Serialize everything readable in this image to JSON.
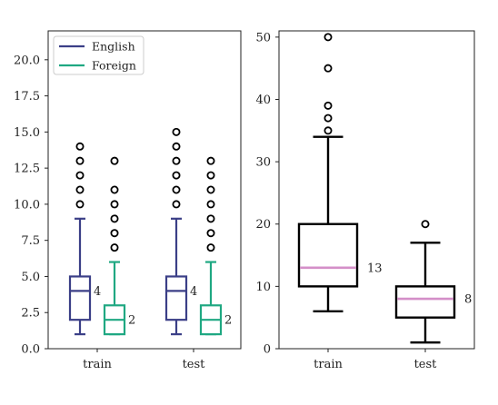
{
  "chart_data": [
    {
      "type": "box",
      "title": "",
      "xlabel": "",
      "ylabel": "",
      "categories": [
        "train",
        "test"
      ],
      "ylim": [
        0,
        22
      ],
      "yticks": [
        0.0,
        2.5,
        5.0,
        7.5,
        10.0,
        12.5,
        15.0,
        17.5,
        20.0
      ],
      "ytick_labels": [
        "0.0",
        "2.5",
        "5.0",
        "7.5",
        "10.0",
        "12.5",
        "15.0",
        "17.5",
        "20.0"
      ],
      "grid": false,
      "legend": {
        "position": "top-left",
        "entries": [
          "English",
          "Foreign"
        ]
      },
      "series": [
        {
          "name": "English",
          "color": "#3b3f87",
          "boxes": [
            {
              "category": "train",
              "q1": 2,
              "median": 4,
              "q3": 5,
              "whisker_low": 1,
              "whisker_high": 9,
              "outliers": [
                10,
                11,
                12,
                13,
                14
              ],
              "label": "4"
            },
            {
              "category": "test",
              "q1": 2,
              "median": 4,
              "q3": 5,
              "whisker_low": 1,
              "whisker_high": 9,
              "outliers": [
                10,
                11,
                12,
                13,
                14,
                15
              ],
              "label": "4"
            }
          ]
        },
        {
          "name": "Foreign",
          "color": "#1fa882",
          "boxes": [
            {
              "category": "train",
              "q1": 1,
              "median": 2,
              "q3": 3,
              "whisker_low": 1,
              "whisker_high": 6,
              "outliers": [
                7,
                8,
                9,
                10,
                11,
                13
              ],
              "label": "2"
            },
            {
              "category": "test",
              "q1": 1,
              "median": 2,
              "q3": 3,
              "whisker_low": 1,
              "whisker_high": 6,
              "outliers": [
                7,
                8,
                9,
                10,
                11,
                12,
                13
              ],
              "label": "2"
            }
          ]
        }
      ]
    },
    {
      "type": "box",
      "title": "",
      "xlabel": "",
      "ylabel": "",
      "categories": [
        "train",
        "test"
      ],
      "ylim": [
        0,
        51
      ],
      "yticks": [
        0,
        10,
        20,
        30,
        40,
        50
      ],
      "ytick_labels": [
        "0",
        "10",
        "20",
        "30",
        "40",
        "50"
      ],
      "grid": false,
      "box_color": "#000000",
      "median_color": "#d48fc8",
      "boxes": [
        {
          "category": "train",
          "q1": 10,
          "median": 13,
          "q3": 20,
          "whisker_low": 6,
          "whisker_high": 34,
          "outliers": [
            35,
            37,
            39,
            45,
            50
          ],
          "label": "13"
        },
        {
          "category": "test",
          "q1": 5,
          "median": 8,
          "q3": 10,
          "whisker_low": 1,
          "whisker_high": 17,
          "outliers": [
            20
          ],
          "label": "8"
        }
      ]
    }
  ]
}
